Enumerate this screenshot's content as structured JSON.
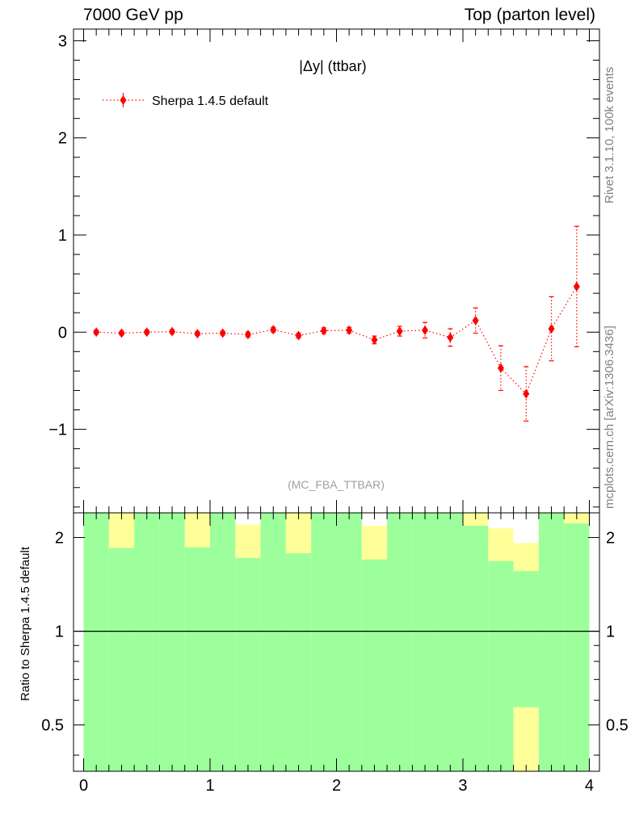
{
  "header": {
    "left": "7000 GeV pp",
    "right": "Top (parton level)"
  },
  "side_labels": {
    "rivet": "Rivet 3.1.10,  100k events",
    "source": "mcplots.cern.ch [arXiv:1306.3436]"
  },
  "chart_data": [
    {
      "type": "line",
      "panel": "main",
      "title": "|Δy| (ttbar)",
      "watermark": "(MC_FBA_TTBAR)",
      "xlabel": "",
      "ylabel": "",
      "xlim": [
        -0.08,
        4.08
      ],
      "ylim": [
        -1.86,
        3.12
      ],
      "yticks": [
        -1,
        0,
        1,
        2,
        3
      ],
      "ytick_labels": [
        "−1",
        "0",
        "1",
        "2",
        "3"
      ],
      "legend": {
        "placement": "top-left"
      },
      "series": [
        {
          "name": "Sherpa 1.4.5 default",
          "color": "#ff0000",
          "marker": "diamond",
          "line": "dotted",
          "x": [
            0.1,
            0.3,
            0.5,
            0.7,
            0.9,
            1.1,
            1.3,
            1.5,
            1.7,
            1.9,
            2.1,
            2.3,
            2.5,
            2.7,
            2.9,
            3.1,
            3.3,
            3.5,
            3.7,
            3.9
          ],
          "y": [
            0.0,
            -0.01,
            0.0,
            0.005,
            -0.015,
            -0.01,
            -0.025,
            0.025,
            -0.035,
            0.015,
            0.02,
            -0.08,
            0.01,
            0.02,
            -0.055,
            0.12,
            -0.37,
            -0.635,
            0.035,
            0.47
          ],
          "yerr": [
            0.02,
            0.02,
            0.02,
            0.02,
            0.02,
            0.02,
            0.025,
            0.025,
            0.025,
            0.03,
            0.03,
            0.04,
            0.05,
            0.08,
            0.09,
            0.13,
            0.23,
            0.28,
            0.33,
            0.62
          ]
        }
      ]
    },
    {
      "type": "bar",
      "panel": "ratio",
      "ylabel": "Ratio to Sherpa 1.4.5 default",
      "xlim": [
        -0.08,
        4.08
      ],
      "ylim": [
        0.355,
        2.4
      ],
      "scale": "log",
      "xticks": [
        0,
        1,
        2,
        3,
        4
      ],
      "xtick_labels": [
        "0",
        "1",
        "2",
        "3",
        "4"
      ],
      "yticks": [
        0.5,
        1,
        2
      ],
      "ytick_labels": [
        "0.5",
        "1",
        "2"
      ],
      "reference_line": 1,
      "colors": {
        "inner_band": "#9cff9c",
        "outer_band": "#ffff99"
      },
      "bins": [
        {
          "lo": 0.0,
          "hi": 0.2,
          "green": [
            0.355,
            2.4
          ],
          "yellow": [
            0.355,
            2.4
          ]
        },
        {
          "lo": 0.2,
          "hi": 0.4,
          "green": [
            0.355,
            1.85
          ],
          "yellow": [
            0.355,
            2.4
          ]
        },
        {
          "lo": 0.4,
          "hi": 0.6,
          "green": [
            0.355,
            2.4
          ],
          "yellow": [
            0.355,
            2.4
          ]
        },
        {
          "lo": 0.6,
          "hi": 0.8,
          "green": [
            0.355,
            2.4
          ],
          "yellow": [
            0.355,
            2.4
          ]
        },
        {
          "lo": 0.8,
          "hi": 1.0,
          "green": [
            0.355,
            1.86
          ],
          "yellow": [
            0.355,
            2.4
          ]
        },
        {
          "lo": 1.0,
          "hi": 1.2,
          "green": [
            0.355,
            2.4
          ],
          "yellow": [
            0.355,
            2.4
          ]
        },
        {
          "lo": 1.2,
          "hi": 1.4,
          "green": [
            0.355,
            1.72
          ],
          "yellow": [
            0.355,
            2.2
          ]
        },
        {
          "lo": 1.4,
          "hi": 1.6,
          "green": [
            0.355,
            2.4
          ],
          "yellow": [
            0.355,
            2.4
          ]
        },
        {
          "lo": 1.6,
          "hi": 1.8,
          "green": [
            0.355,
            1.78
          ],
          "yellow": [
            0.355,
            2.4
          ]
        },
        {
          "lo": 1.8,
          "hi": 2.0,
          "green": [
            0.355,
            2.4
          ],
          "yellow": [
            0.355,
            2.4
          ]
        },
        {
          "lo": 2.0,
          "hi": 2.2,
          "green": [
            0.355,
            2.4
          ],
          "yellow": [
            0.355,
            2.4
          ]
        },
        {
          "lo": 2.2,
          "hi": 2.4,
          "green": [
            0.355,
            1.7
          ],
          "yellow": [
            0.355,
            2.18
          ]
        },
        {
          "lo": 2.4,
          "hi": 2.6,
          "green": [
            0.355,
            2.4
          ],
          "yellow": [
            0.355,
            2.4
          ]
        },
        {
          "lo": 2.6,
          "hi": 2.8,
          "green": [
            0.355,
            2.4
          ],
          "yellow": [
            0.355,
            2.4
          ]
        },
        {
          "lo": 2.8,
          "hi": 3.0,
          "green": [
            0.355,
            2.4
          ],
          "yellow": [
            0.355,
            2.4
          ]
        },
        {
          "lo": 3.0,
          "hi": 3.2,
          "green": [
            0.355,
            2.18
          ],
          "yellow": [
            0.355,
            2.4
          ]
        },
        {
          "lo": 3.2,
          "hi": 3.4,
          "green": [
            0.355,
            1.68
          ],
          "yellow": [
            0.355,
            2.14
          ]
        },
        {
          "lo": 3.4,
          "hi": 3.6,
          "green": [
            0.57,
            1.56
          ],
          "yellow": [
            0.355,
            1.92
          ]
        },
        {
          "lo": 3.6,
          "hi": 3.8,
          "green": [
            0.355,
            2.4
          ],
          "yellow": [
            0.355,
            2.4
          ]
        },
        {
          "lo": 3.8,
          "hi": 4.0,
          "green": [
            0.355,
            2.22
          ],
          "yellow": [
            0.355,
            2.4
          ]
        }
      ]
    }
  ]
}
